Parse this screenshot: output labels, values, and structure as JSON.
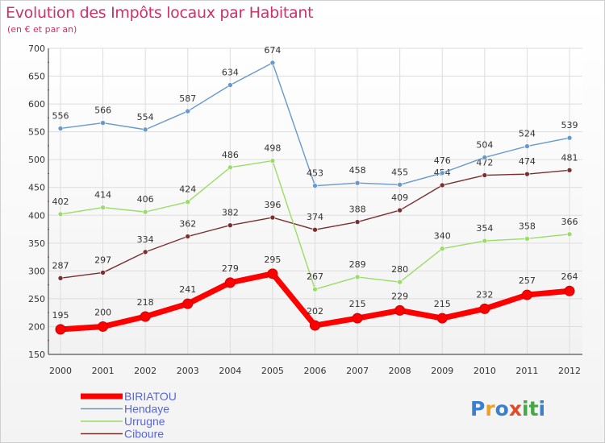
{
  "title": "Evolution des Impôts locaux par Habitant",
  "subtitle": "(en € et par an)",
  "brand": {
    "letters": [
      "P",
      "r",
      "o",
      "x",
      "i",
      "t",
      "i"
    ],
    "colors": [
      "#3a7fd0",
      "#f0a020",
      "#3a7fd0",
      "#e04b2a",
      "#44a844",
      "#44a844",
      "#3a7fd0"
    ]
  },
  "chart_data": {
    "type": "line",
    "title": "Evolution des Impôts locaux par Habitant",
    "subtitle": "(en € et par an)",
    "x": [
      "2000",
      "2001",
      "2002",
      "2003",
      "2004",
      "2005",
      "2006",
      "2007",
      "2008",
      "2009",
      "2010",
      "2011",
      "2012"
    ],
    "ylim": [
      150,
      700
    ],
    "yticks": [
      150,
      200,
      250,
      300,
      350,
      400,
      450,
      500,
      550,
      600,
      650,
      700
    ],
    "grid": true,
    "legend_position": "bottom-left",
    "series": [
      {
        "name": "BIRIATOU",
        "color": "#ff0000",
        "values": [
          195,
          200,
          218,
          241,
          279,
          295,
          202,
          215,
          229,
          215,
          232,
          257,
          264
        ]
      },
      {
        "name": "Hendaye",
        "color": "#6699cc",
        "values": [
          556,
          566,
          554,
          587,
          634,
          674,
          453,
          458,
          455,
          476,
          504,
          524,
          539
        ]
      },
      {
        "name": "Urrugne",
        "color": "#99dd66",
        "values": [
          402,
          414,
          406,
          424,
          486,
          498,
          267,
          289,
          280,
          340,
          354,
          358,
          366
        ]
      },
      {
        "name": "Ciboure",
        "color": "#7a3030",
        "values": [
          287,
          297,
          334,
          362,
          382,
          396,
          374,
          388,
          409,
          454,
          472,
          474,
          481
        ]
      }
    ]
  }
}
